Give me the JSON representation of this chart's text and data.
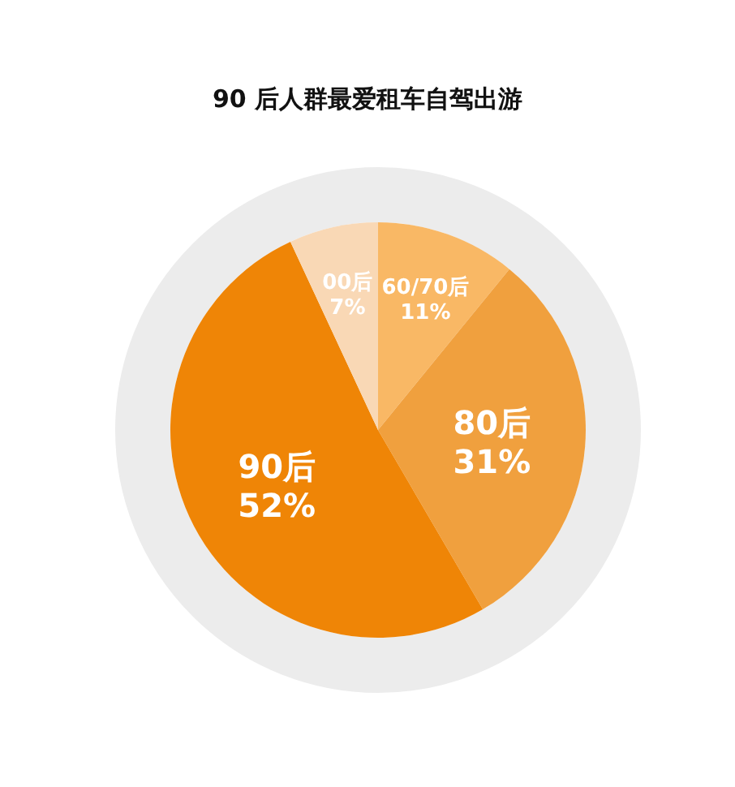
{
  "chart_data": {
    "type": "pie",
    "title": "90 后人群最爱租车自驾出游",
    "categories": [
      "60/70后",
      "80后",
      "90后",
      "00后"
    ],
    "values": [
      11,
      31,
      52,
      7
    ],
    "value_labels": [
      "11%",
      "31%",
      "52%",
      "7%"
    ],
    "colors": [
      "#f9b865",
      "#f0a03e",
      "#ef8506",
      "#f9d8b5"
    ],
    "legend": false
  }
}
